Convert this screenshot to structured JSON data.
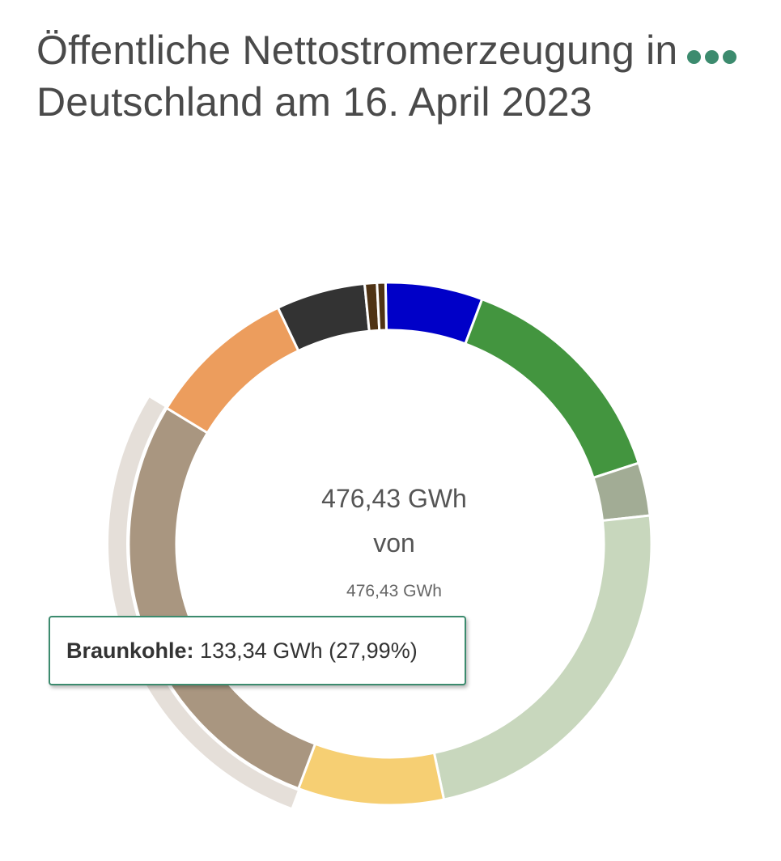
{
  "header": {
    "title": "Öffentliche Nettostromerzeugung in Deutschland am 16. April 2023",
    "menu_icon": "ellipsis-icon",
    "accent_color": "#3c8b6e"
  },
  "chart_data": {
    "type": "pie",
    "variant": "donut",
    "title": "Öffentliche Nettostromerzeugung in Deutschland am 16. April 2023",
    "unit": "GWh",
    "center_text": {
      "value": "476,43 GWh",
      "separator": "von",
      "total": "476,43 GWh"
    },
    "slices": [
      {
        "value": 28.6,
        "color": "#0000c8"
      },
      {
        "value": 68.0,
        "color": "#43953f"
      },
      {
        "value": 15.6,
        "color": "#a2ac95"
      },
      {
        "value": 111.6,
        "color": "#c8d7bd"
      },
      {
        "value": 42.9,
        "color": "#f6cf73"
      },
      {
        "value": 133.34,
        "color": "#a99680",
        "highlighted": true
      },
      {
        "value": 44.1,
        "color": "#ec9d5d"
      },
      {
        "value": 26.2,
        "color": "#333333"
      },
      {
        "value": 3.6,
        "color": "#4f3314"
      },
      {
        "value": 2.49,
        "color": "#4f3314"
      }
    ],
    "tooltip": {
      "name": "Braunkohle:",
      "value": "133,34 GWh (27,99%)"
    }
  }
}
